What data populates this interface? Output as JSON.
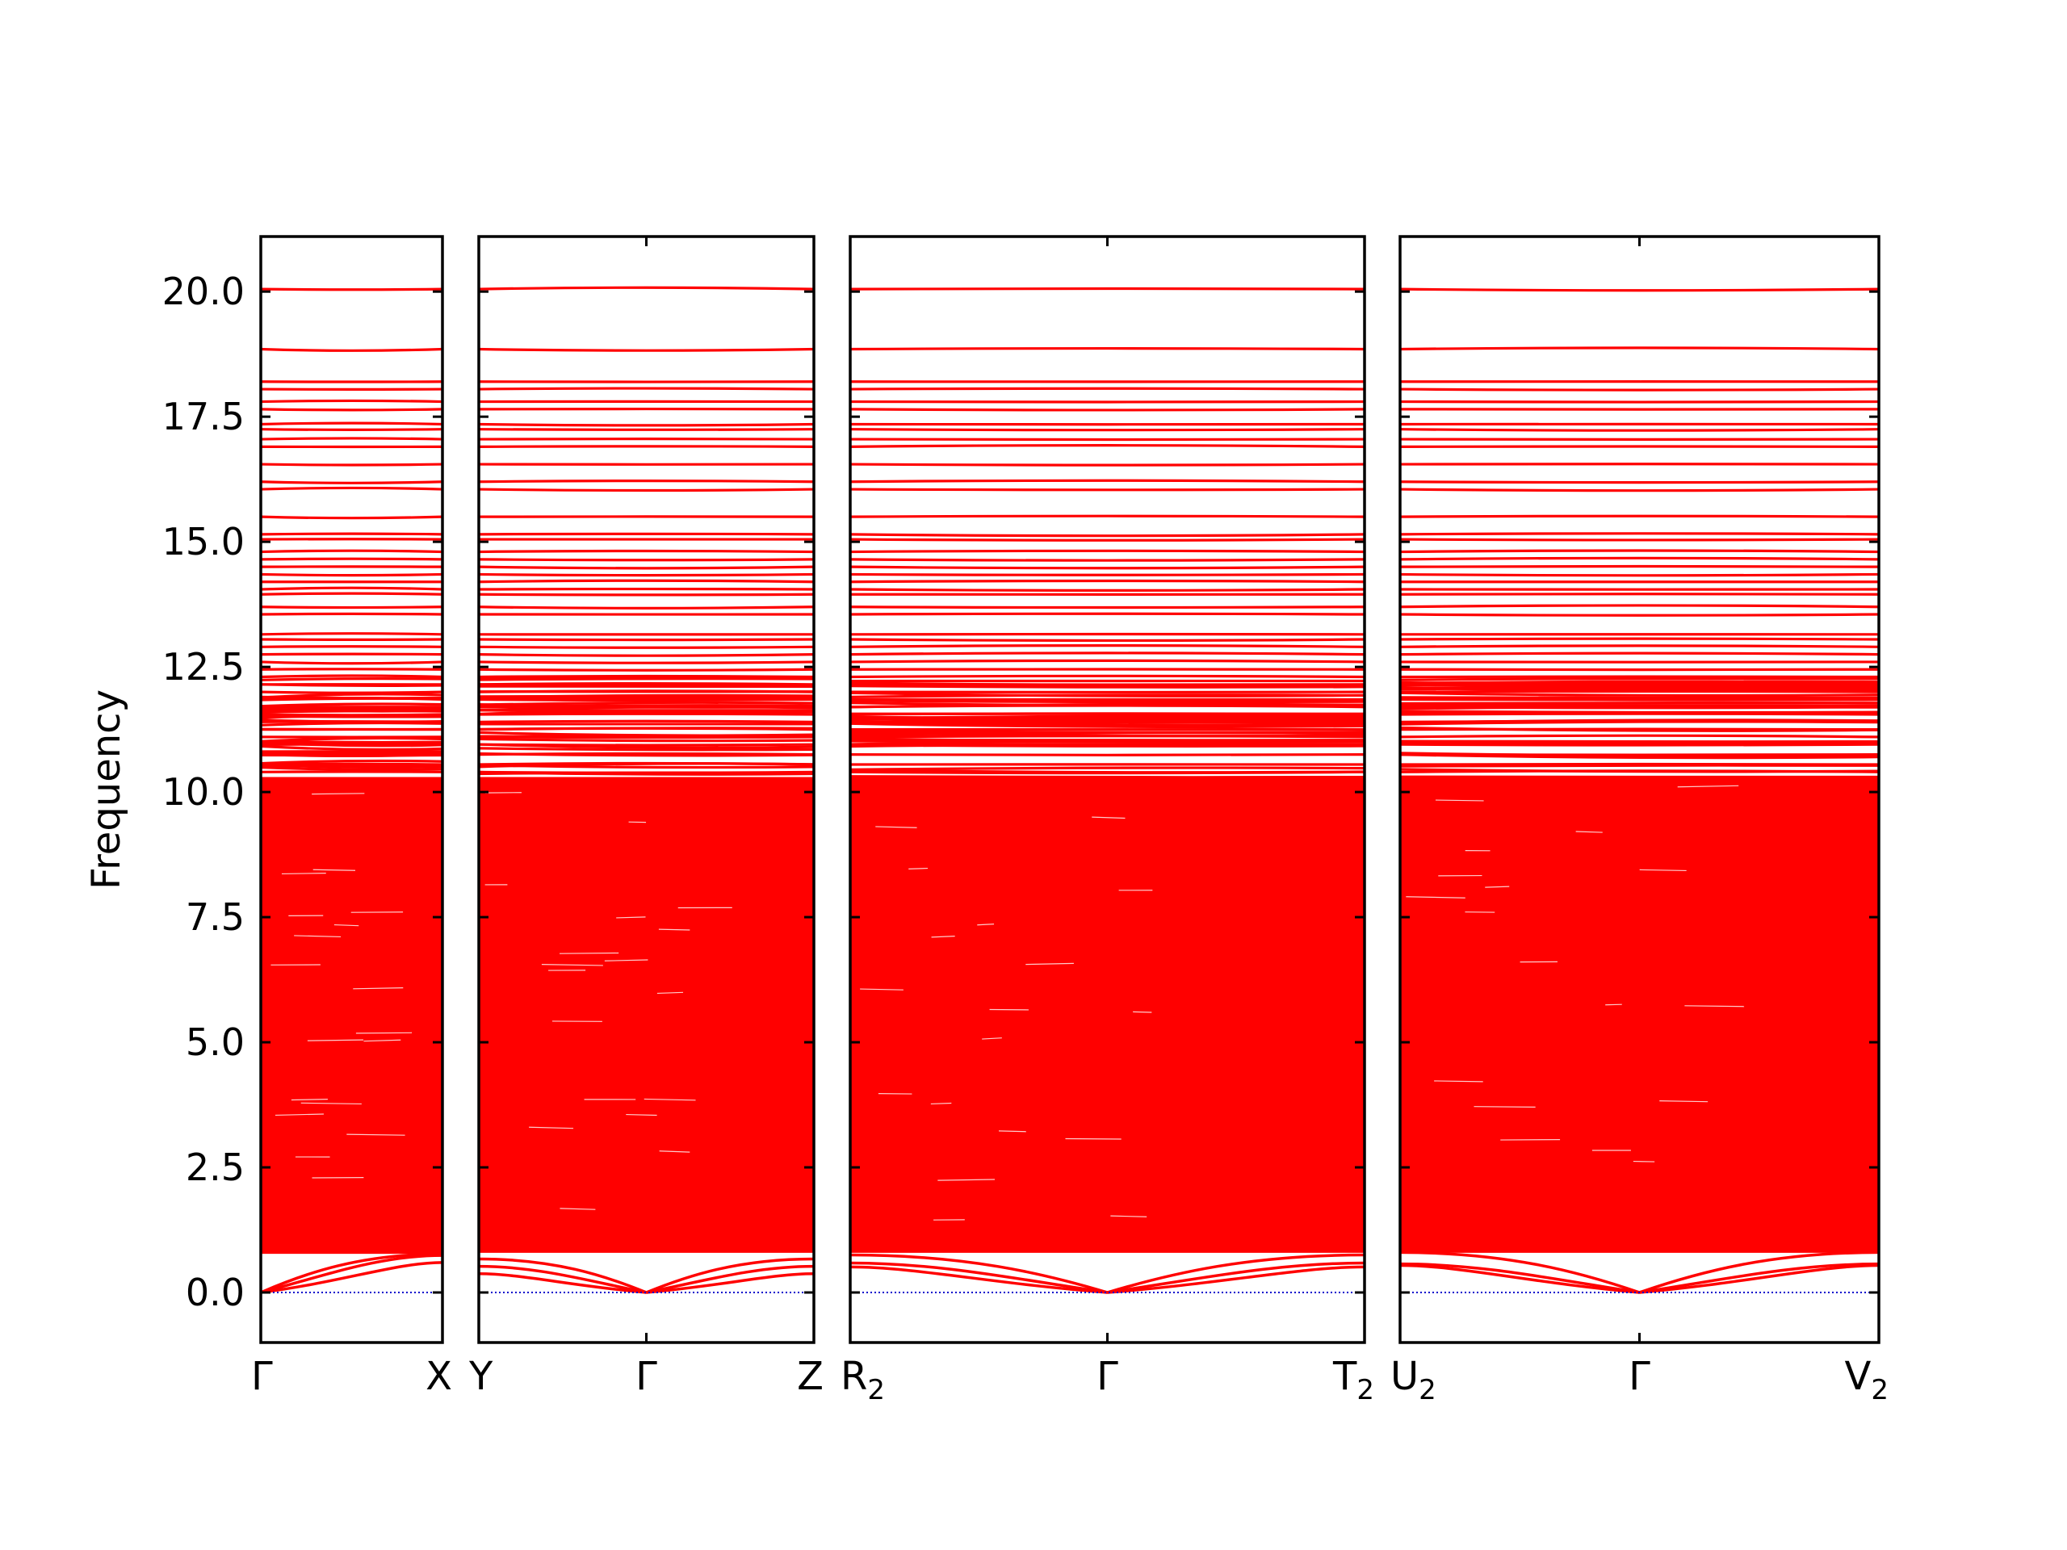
{
  "chart_data": {
    "type": "line",
    "ylabel": "Frequency",
    "ylim": [
      -1.0,
      21.1
    ],
    "yticks": [
      0.0,
      2.5,
      5.0,
      7.5,
      10.0,
      12.5,
      15.0,
      17.5,
      20.0
    ],
    "ytick_labels": [
      "0.0",
      "2.5",
      "5.0",
      "7.5",
      "10.0",
      "12.5",
      "15.0",
      "17.5",
      "20.0"
    ],
    "line_color": "#ff0000",
    "zero_line_color": "#0000cc",
    "segments": [
      {
        "name": "G-X",
        "x_labels": [
          "Γ",
          "X"
        ],
        "x_label_subscripts": [
          "",
          ""
        ],
        "acoustic_top": [
          0.72,
          0.78,
          0.8
        ],
        "gap_top": 0.8
      },
      {
        "name": "Y-G-Z",
        "x_labels": [
          "Y",
          "Γ",
          "Z"
        ],
        "x_label_subscripts": [
          "",
          "",
          ""
        ],
        "acoustic_top": [
          0.62,
          0.55,
          0.5
        ],
        "gap_top": 0.82
      },
      {
        "name": "R2-G-T2",
        "x_labels": [
          "R",
          "Γ",
          "T"
        ],
        "x_label_subscripts": [
          "2",
          "",
          "2"
        ],
        "acoustic_top": [
          0.7,
          0.62,
          0.68
        ],
        "gap_top": 0.82
      },
      {
        "name": "U2-G-V2",
        "x_labels": [
          "U",
          "Γ",
          "V"
        ],
        "x_label_subscripts": [
          "2",
          "",
          "2"
        ],
        "acoustic_top": [
          0.75,
          0.6,
          0.72
        ],
        "gap_top": 0.82
      }
    ],
    "dense_band_range": [
      0.8,
      10.3
    ],
    "upper_flat_bands": [
      10.4,
      10.55,
      10.75,
      10.95,
      11.1,
      11.25,
      11.4,
      11.55,
      11.7,
      11.85,
      12.0,
      12.15,
      12.3,
      12.45,
      12.6,
      12.75,
      12.9,
      13.05,
      13.15,
      13.55,
      13.7,
      13.95,
      14.05,
      14.2,
      14.35,
      14.5,
      14.65,
      14.8,
      15.05,
      15.15,
      15.5,
      16.05,
      16.2,
      16.55,
      16.9,
      17.05,
      17.25,
      17.35,
      17.65,
      17.8,
      18.05,
      18.2,
      18.85,
      20.05
    ]
  }
}
